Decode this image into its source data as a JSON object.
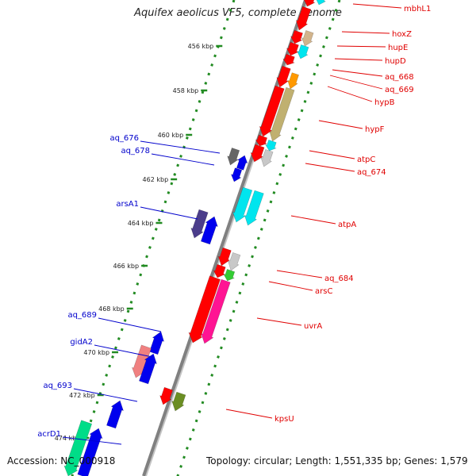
{
  "title": "Aquifex aeolicus VF5, complete genome",
  "accession": "Accession: NC_000918",
  "topology": "Topology: circular; Length: 1,551,335 bp; Genes: 1,579",
  "colors": {
    "backbone": "#808080",
    "tick": "#228b22",
    "right_label": "#e00000",
    "left_label": "#0000cc"
  },
  "scale_labels": [
    "456 kbp",
    "458 kbp",
    "460 kbp",
    "462 kbp",
    "464 kbp",
    "466 kbp",
    "468 kbp",
    "470 kbp",
    "472 kbp",
    "474 kbp"
  ],
  "genes": [
    {
      "name": "mbhL1",
      "label": true,
      "color": "#ff0000"
    },
    {
      "name": "hoxZ",
      "label": true,
      "color": "#ff0000"
    },
    {
      "name": "hupE",
      "label": true,
      "color": "#d2b48c"
    },
    {
      "name": "hupD",
      "label": true,
      "color": "#00e5ee"
    },
    {
      "name": "aq_668",
      "label": true,
      "color": "#ff0000"
    },
    {
      "name": "aq_669",
      "label": true,
      "color": "#ff0000"
    },
    {
      "name": "hypB",
      "label": true,
      "color": "#ff9900"
    },
    {
      "name": "hypF",
      "label": true,
      "color": "#c0b070"
    },
    {
      "name": "atpC",
      "label": true,
      "color": "#00e5ee"
    },
    {
      "name": "aq_674",
      "label": true,
      "color": "#c8c8c8"
    },
    {
      "name": "aq_676",
      "label": true,
      "color": "#666666"
    },
    {
      "name": "aq_678",
      "label": true,
      "color": "#0000ee"
    },
    {
      "name": "arsA1",
      "label": true,
      "color": "#4b3d8b"
    },
    {
      "name": "atpA",
      "label": true,
      "color": "#00e5ee"
    },
    {
      "name": "aq_684",
      "label": true,
      "color": "#33cc33"
    },
    {
      "name": "arsC",
      "label": true,
      "color": "#ff0000"
    },
    {
      "name": "uvrA",
      "label": true,
      "color": "#ff1493"
    },
    {
      "name": "aq_689",
      "label": true,
      "color": "#0000ee"
    },
    {
      "name": "gidA2",
      "label": true,
      "color": "#f08080"
    },
    {
      "name": "aq_693",
      "label": true,
      "color": "#0000ee"
    },
    {
      "name": "kpsU",
      "label": true,
      "color": "#6b8e23"
    },
    {
      "name": "acrD1",
      "label": true,
      "color": "#00dd88"
    }
  ]
}
